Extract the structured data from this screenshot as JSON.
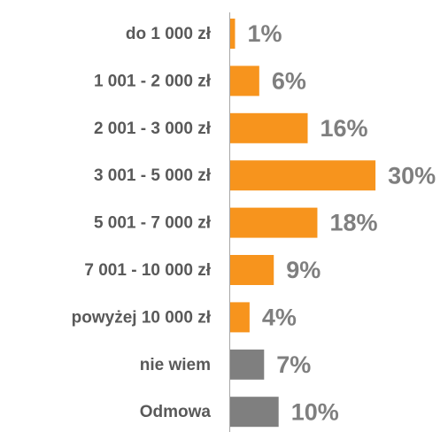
{
  "chart_data": {
    "type": "barh",
    "categories": [
      "do 1 000 zł",
      "1 001 - 2 000 zł",
      "2 001 - 3 000 zł",
      "3 001 - 5 000 zł",
      "5 001 - 7 000 zł",
      "7 001 - 10 000 zł",
      "powyżej 10 000 zł",
      "nie wiem",
      "Odmowa"
    ],
    "values": [
      1,
      6,
      16,
      30,
      18,
      9,
      4,
      7,
      10
    ],
    "value_labels": [
      "1%",
      "6%",
      "16%",
      "30%",
      "18%",
      "9%",
      "4%",
      "7%",
      "10%"
    ],
    "colors": [
      "#f7941d",
      "#f7941d",
      "#f7941d",
      "#f7941d",
      "#f7941d",
      "#f7941d",
      "#f7941d",
      "#7f7f7f",
      "#7f7f7f"
    ]
  }
}
